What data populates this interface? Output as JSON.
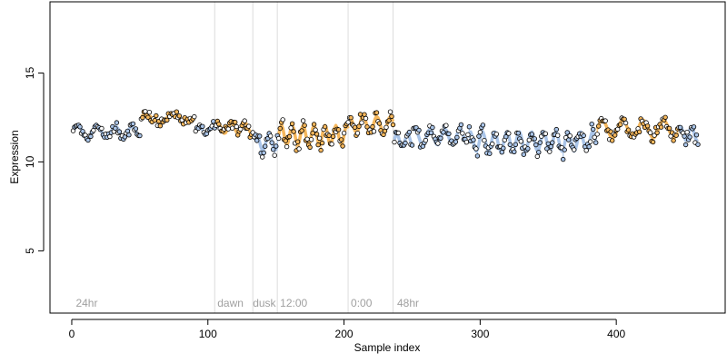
{
  "chart_data": {
    "type": "scatter",
    "xlabel": "Sample index",
    "ylabel": "Expression",
    "xlim": [
      -16,
      480
    ],
    "ylim": [
      1.5,
      19.0
    ],
    "x_ticks": [
      0,
      100,
      200,
      300,
      400
    ],
    "y_ticks": [
      5,
      10,
      15
    ],
    "grid": false,
    "colors": {
      "segment_blue": "#a9c4e8",
      "segment_orange": "#f5b75c",
      "vline": "#dcdcdc",
      "annotation_text": "#a0a0a0",
      "point_edge": "#000000"
    },
    "vertical_lines": [
      105,
      133,
      151,
      203,
      236
    ],
    "annotations": [
      {
        "x": 3,
        "text": "24hr"
      },
      {
        "x": 107,
        "text": "dawn"
      },
      {
        "x": 133,
        "text": "dusk"
      },
      {
        "x": 153,
        "text": "12:00"
      },
      {
        "x": 205,
        "text": "0:00"
      },
      {
        "x": 239,
        "text": "48hr"
      }
    ],
    "segments": [
      {
        "x0": 1,
        "x1": 30,
        "color": "blue",
        "baseline": 11.7,
        "amplitude": 0.35,
        "period": 14,
        "phase": 0.0,
        "noise": 0.22,
        "bars": false
      },
      {
        "x0": 31,
        "x1": 50,
        "color": "blue",
        "baseline": 11.7,
        "amplitude": 0.3,
        "period": 12,
        "phase": 1.0,
        "noise": 0.25,
        "bars": false
      },
      {
        "x0": 51,
        "x1": 90,
        "color": "orange",
        "baseline": 12.45,
        "amplitude": 0.2,
        "period": 20,
        "phase": 0.5,
        "noise": 0.2,
        "bars": false
      },
      {
        "x0": 91,
        "x1": 105,
        "color": "blue",
        "baseline": 11.8,
        "amplitude": 0.2,
        "period": 10,
        "phase": 0.0,
        "noise": 0.25,
        "bars": false
      },
      {
        "x0": 106,
        "x1": 133,
        "color": "orange",
        "baseline": 11.9,
        "amplitude": 0.3,
        "period": 10,
        "phase": 0.8,
        "noise": 0.3,
        "bars": false
      },
      {
        "x0": 134,
        "x1": 151,
        "color": "blue",
        "baseline": 11.1,
        "amplitude": 0.45,
        "period": 9,
        "phase": 0.3,
        "noise": 0.35,
        "bars": true
      },
      {
        "x0": 152,
        "x1": 203,
        "color": "orange",
        "baseline": 11.5,
        "amplitude": 0.55,
        "period": 8,
        "phase": 0.0,
        "noise": 0.4,
        "bars": true
      },
      {
        "x0": 204,
        "x1": 236,
        "color": "orange",
        "baseline": 12.1,
        "amplitude": 0.45,
        "period": 10,
        "phase": 1.5,
        "noise": 0.35,
        "bars": true
      },
      {
        "x0": 237,
        "x1": 250,
        "color": "blue",
        "baseline": 11.2,
        "amplitude": 0.35,
        "period": 8,
        "phase": 0.2,
        "noise": 0.3,
        "bars": true
      },
      {
        "x0": 251,
        "x1": 290,
        "color": "blue",
        "baseline": 11.4,
        "amplitude": 0.45,
        "period": 11,
        "phase": 0.9,
        "noise": 0.3,
        "bars": false
      },
      {
        "x0": 291,
        "x1": 385,
        "color": "blue",
        "baseline": 11.15,
        "amplitude": 0.55,
        "period": 9,
        "phase": 0.4,
        "noise": 0.4,
        "bars": true
      },
      {
        "x0": 386,
        "x1": 445,
        "color": "orange",
        "baseline": 11.85,
        "amplitude": 0.5,
        "period": 15,
        "phase": 0.0,
        "noise": 0.3,
        "bars": true
      },
      {
        "x0": 446,
        "x1": 460,
        "color": "blue",
        "baseline": 11.6,
        "amplitude": 0.4,
        "period": 8,
        "phase": 0.6,
        "noise": 0.3,
        "bars": false
      }
    ]
  }
}
